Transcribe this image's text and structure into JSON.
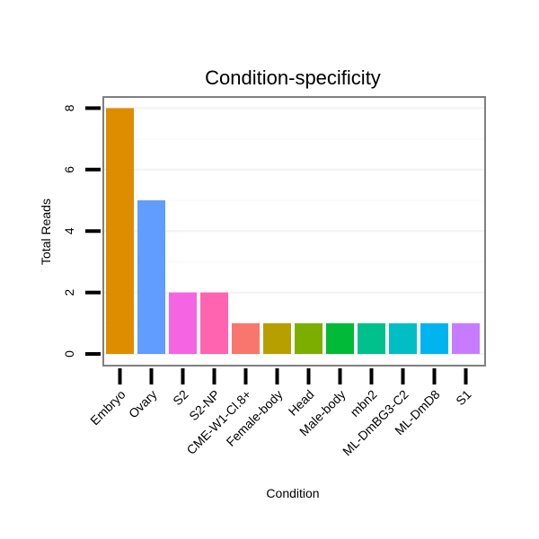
{
  "chart_data": {
    "type": "bar",
    "title": "Condition-specificity",
    "xlabel": "Condition",
    "ylabel": "Total Reads",
    "ylim": [
      0,
      8.4
    ],
    "yticks": [
      0,
      2,
      4,
      6,
      8
    ],
    "grid": true,
    "legend": "none",
    "categories": [
      "Embryo",
      "Ovary",
      "S2",
      "S2-NP",
      "CME-W1-Cl.8+",
      "Female-body",
      "Head",
      "Male-body",
      "mbn2",
      "ML-DmBG3-C2",
      "ML-DmD8",
      "S1"
    ],
    "values": [
      8,
      5,
      2,
      2,
      1,
      1,
      1,
      1,
      1,
      1,
      1,
      1
    ],
    "colors": [
      "#DE8C00",
      "#619CFF",
      "#F564E3",
      "#FF64B0",
      "#F8766D",
      "#B79F00",
      "#7CAE00",
      "#00BA38",
      "#00C08B",
      "#00BFC4",
      "#00B4F0",
      "#C77CFF"
    ]
  }
}
